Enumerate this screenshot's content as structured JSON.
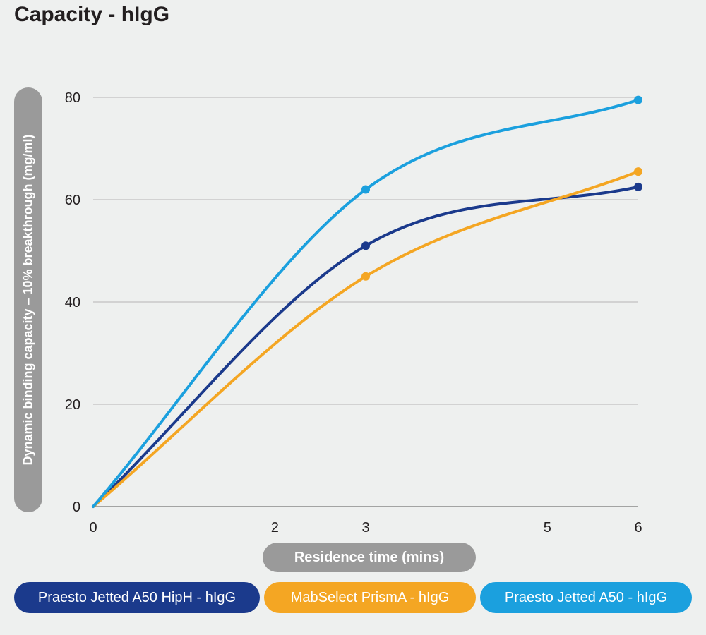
{
  "chart_data": {
    "type": "line",
    "title": "Capacity - hIgG",
    "xlabel": "Residence time (mins)",
    "ylabel": "Dynamic binding capacity – 10% breakthrough (mg/ml)",
    "x_tick_labels": [
      "0",
      "2",
      "3",
      "5",
      "6"
    ],
    "x_tick_positions": [
      0,
      2,
      3,
      5,
      6
    ],
    "xlim": [
      0,
      6
    ],
    "y_ticks": [
      0,
      20,
      40,
      60,
      80
    ],
    "ylim": [
      0,
      80
    ],
    "grid": true,
    "legend_position": "bottom",
    "series": [
      {
        "name": "Praesto Jetted A50 HipH - hIgG",
        "color": "#1b3a8c",
        "points": [
          {
            "x": 0,
            "y": 0
          },
          {
            "x": 3,
            "y": 51
          },
          {
            "x": 6,
            "y": 62.5
          }
        ]
      },
      {
        "name": "MabSelect PrismA - hIgG",
        "color": "#f4a623",
        "points": [
          {
            "x": 0,
            "y": 0
          },
          {
            "x": 3,
            "y": 45
          },
          {
            "x": 6,
            "y": 65.5
          }
        ]
      },
      {
        "name": "Praesto Jetted A50 - hIgG",
        "color": "#1ba0de",
        "points": [
          {
            "x": 0,
            "y": 0
          },
          {
            "x": 3,
            "y": 62
          },
          {
            "x": 6,
            "y": 79.5
          }
        ]
      }
    ]
  }
}
